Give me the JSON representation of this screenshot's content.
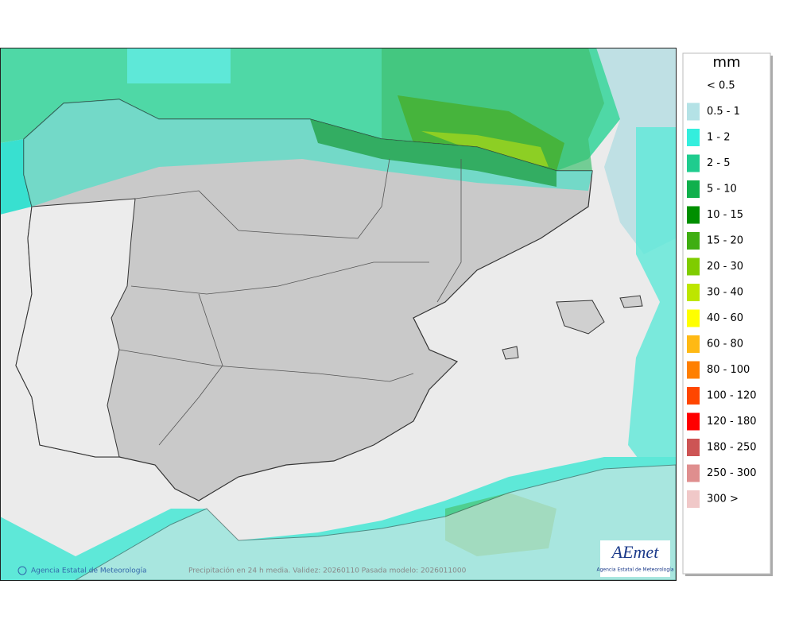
{
  "legend": {
    "title": "mm",
    "items": [
      {
        "label": "< 0.5",
        "color": "#ffffff"
      },
      {
        "label": "0.5 - 1",
        "color": "#b4e2e6"
      },
      {
        "label": "1 - 2",
        "color": "#34eedd"
      },
      {
        "label": "2 - 5",
        "color": "#1fcc8e"
      },
      {
        "label": "5 - 10",
        "color": "#10b04c"
      },
      {
        "label": "10 - 15",
        "color": "#008f00"
      },
      {
        "label": "15 - 20",
        "color": "#3fae12"
      },
      {
        "label": "20 - 30",
        "color": "#7fcc00"
      },
      {
        "label": "30 - 40",
        "color": "#bde600"
      },
      {
        "label": "40 - 60",
        "color": "#ffff00"
      },
      {
        "label": "60 - 80",
        "color": "#ffb914"
      },
      {
        "label": "80 - 100",
        "color": "#ff7f00"
      },
      {
        "label": "100 - 120",
        "color": "#ff4600"
      },
      {
        "label": "120 - 180",
        "color": "#ff0000"
      },
      {
        "label": "180 - 250",
        "color": "#cd5454"
      },
      {
        "label": "250 - 300",
        "color": "#df8e8e"
      },
      {
        "label": "300 >",
        "color": "#f0c8c8"
      }
    ]
  },
  "footer": {
    "credit": "Agencia Estatal de Meteorología",
    "caption": "Precipitación en 24 h media. Validez: 20260110 Pasada modelo: 2026011000"
  },
  "logo": {
    "text": "AEmet",
    "subtitle": "Agencia Estatal de Meteorología"
  }
}
